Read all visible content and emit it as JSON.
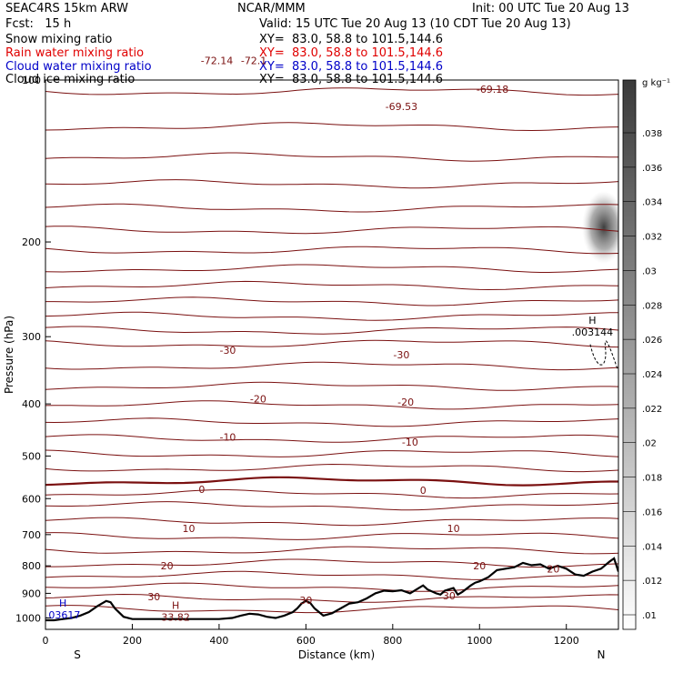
{
  "header": {
    "model": "SEAC4RS 15km ARW",
    "center": "NCAR/MMM",
    "init": "Init: 00 UTC Tue 20 Aug 13",
    "fcst": "Fcst:   15 h",
    "valid": "Valid: 15 UTC Tue 20 Aug 13 (10 CDT Tue 20 Aug 13)",
    "fields": [
      {
        "name": "Snow mixing ratio",
        "xy": "XY=  83.0, 58.8 to 101.5,144.6",
        "color": "#000000"
      },
      {
        "name": "Rain water mixing ratio",
        "xy": "XY=  83.0, 58.8 to 101.5,144.6",
        "color": "#e00000"
      },
      {
        "name": "Cloud water mixing ratio",
        "xy": "XY=  83.0, 58.8 to 101.5,144.6",
        "color": "#0000c8"
      },
      {
        "name": "Cloud ice mixing ratio",
        "xy": "XY=  83.0, 58.8 to 101.5,144.6",
        "color": "#000000"
      }
    ]
  },
  "chart_data": {
    "type": "cross-section",
    "xlabel": "Distance (km)",
    "ylabel": "Pressure (hPa)",
    "xlim": [
      0,
      1320
    ],
    "ylim": [
      1050,
      100
    ],
    "x_ticks": [
      "0",
      "200",
      "400",
      "600",
      "800",
      "1000",
      "1200"
    ],
    "y_ticks": [
      "100",
      "200",
      "300",
      "400",
      "500",
      "600",
      "700",
      "800",
      "900",
      "1000"
    ],
    "endpoints": {
      "left": "S",
      "right": "N"
    },
    "colorbar": {
      "unit": "g kg⁻¹",
      "labels": [
        ".038",
        ".036",
        ".034",
        ".032",
        ".03",
        ".028",
        ".026",
        ".024",
        ".022",
        ".02",
        ".018",
        ".016",
        ".014",
        ".012",
        ".01"
      ]
    },
    "contour_labels": [
      {
        "text": "-72.14",
        "x": 395,
        "p": 92
      },
      {
        "text": "-72.1",
        "x": 480,
        "p": 92
      },
      {
        "text": "-69.53",
        "x": 820,
        "p": 112
      },
      {
        "text": "-69.18",
        "x": 1030,
        "p": 104
      },
      {
        "text": "-30",
        "x": 420,
        "p": 318
      },
      {
        "text": "-30",
        "x": 820,
        "p": 324
      },
      {
        "text": "-20",
        "x": 490,
        "p": 391
      },
      {
        "text": "-20",
        "x": 830,
        "p": 397
      },
      {
        "text": "-10",
        "x": 420,
        "p": 461
      },
      {
        "text": "-10",
        "x": 840,
        "p": 471
      },
      {
        "text": "0",
        "x": 360,
        "p": 576
      },
      {
        "text": "0",
        "x": 870,
        "p": 579
      },
      {
        "text": "10",
        "x": 330,
        "p": 681
      },
      {
        "text": "10",
        "x": 940,
        "p": 681
      },
      {
        "text": "20",
        "x": 280,
        "p": 799
      },
      {
        "text": "20",
        "x": 1000,
        "p": 799
      },
      {
        "text": "20",
        "x": 1170,
        "p": 810
      },
      {
        "text": "30",
        "x": 250,
        "p": 912
      },
      {
        "text": "30",
        "x": 600,
        "p": 927
      },
      {
        "text": "30",
        "x": 930,
        "p": 909
      }
    ],
    "extrema": [
      {
        "mark": "H",
        "value": "33.82",
        "x": 300,
        "p": 993,
        "color": "#7a1010"
      },
      {
        "mark": "H",
        "value": ".03617",
        "x": 40,
        "p": 982,
        "color": "#0000c8"
      },
      {
        "mark": "H",
        "value": ".003144",
        "x": 1260,
        "p": 293,
        "color": "#000000"
      }
    ],
    "terrain": {
      "x": [
        0,
        20,
        40,
        60,
        80,
        100,
        120,
        140,
        150,
        160,
        180,
        200,
        220,
        240,
        260,
        300,
        350,
        400,
        430,
        450,
        470,
        490,
        510,
        530,
        550,
        570,
        580,
        590,
        600,
        610,
        620,
        640,
        660,
        680,
        700,
        720,
        740,
        760,
        780,
        800,
        820,
        840,
        860,
        870,
        880,
        900,
        910,
        920,
        940,
        950,
        960,
        980,
        990,
        1000,
        1020,
        1040,
        1060,
        1080,
        1100,
        1120,
        1140,
        1160,
        1180,
        1200,
        1220,
        1240,
        1260,
        1280,
        1300,
        1310,
        1320
      ],
      "p": [
        1010,
        1010,
        1005,
        1000,
        990,
        975,
        950,
        930,
        935,
        960,
        995,
        1005,
        1005,
        1005,
        1005,
        1005,
        1005,
        1005,
        1000,
        990,
        982,
        985,
        995,
        1000,
        990,
        975,
        960,
        940,
        930,
        938,
        960,
        990,
        980,
        960,
        940,
        935,
        920,
        900,
        890,
        892,
        888,
        900,
        880,
        870,
        885,
        900,
        905,
        890,
        880,
        905,
        895,
        870,
        860,
        855,
        840,
        815,
        810,
        805,
        790,
        798,
        795,
        810,
        800,
        810,
        830,
        835,
        820,
        810,
        785,
        775,
        820
      ]
    }
  }
}
